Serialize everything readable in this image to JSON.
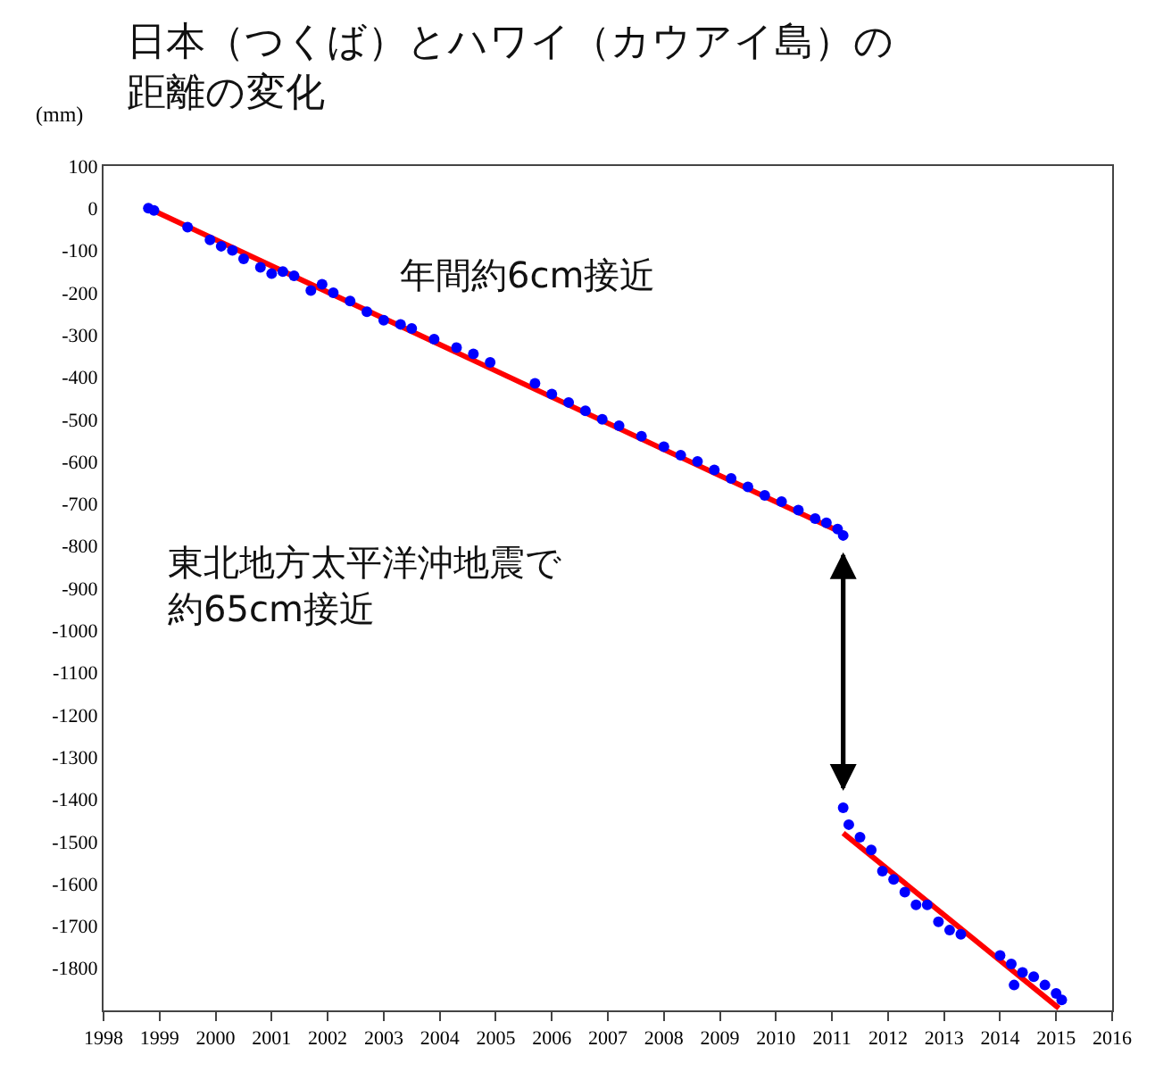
{
  "chart_data": {
    "type": "scatter",
    "title": "日本（つくば）とハワイ（カウアイ島）の距離の変化",
    "ylabel": "(mm)",
    "annotations": [
      "年間約6cm接近",
      "東北地方太平洋沖地震で約65cm接近"
    ],
    "xlim": [
      1998,
      2016
    ],
    "xticks": [
      1998,
      1999,
      2000,
      2001,
      2002,
      2003,
      2004,
      2005,
      2006,
      2007,
      2008,
      2009,
      2010,
      2011,
      2012,
      2013,
      2014,
      2015,
      2016
    ],
    "ylim": [
      -1900,
      100
    ],
    "yticks": [
      100,
      0,
      -100,
      -200,
      -300,
      -400,
      -500,
      -600,
      -700,
      -800,
      -900,
      -1000,
      -1100,
      -1200,
      -1300,
      -1400,
      -1500,
      -1600,
      -1700,
      -1800
    ],
    "series": [
      {
        "marker": "circle",
        "color": "#0000ff",
        "x": [
          1998.8,
          1998.9,
          1999.5,
          1999.9,
          2000.1,
          2000.3,
          2000.5,
          2000.8,
          2001.0,
          2001.2,
          2001.4,
          2001.7,
          2001.9,
          2002.1,
          2002.4,
          2002.7,
          2003.0,
          2003.3,
          2003.5,
          2003.9,
          2004.3,
          2004.6,
          2004.9,
          2005.7,
          2006.0,
          2006.3,
          2006.6,
          2006.9,
          2007.2,
          2007.6,
          2008.0,
          2008.3,
          2008.6,
          2008.9,
          2009.2,
          2009.5,
          2009.8,
          2010.1,
          2010.4,
          2010.7,
          2010.9,
          2011.1,
          2011.2
        ],
        "values": [
          0,
          -5,
          -45,
          -75,
          -90,
          -100,
          -120,
          -140,
          -155,
          -150,
          -160,
          -195,
          -180,
          -200,
          -220,
          -245,
          -265,
          -275,
          -285,
          -310,
          -330,
          -345,
          -365,
          -415,
          -440,
          -460,
          -480,
          -500,
          -515,
          -540,
          -565,
          -585,
          -600,
          -620,
          -640,
          -660,
          -680,
          -695,
          -715,
          -735,
          -745,
          -760,
          -775
        ]
      },
      {
        "marker": "circle",
        "color": "#0000ff",
        "x": [
          2011.2,
          2011.3,
          2011.5,
          2011.7,
          2011.9,
          2012.1,
          2012.3,
          2012.5,
          2012.7,
          2012.9,
          2013.1,
          2013.3,
          2014.0,
          2014.2,
          2014.25,
          2014.4,
          2014.6,
          2014.8,
          2015.0,
          2015.1
        ],
        "values": [
          -1420,
          -1460,
          -1490,
          -1520,
          -1570,
          -1590,
          -1620,
          -1650,
          -1650,
          -1690,
          -1710,
          -1720,
          -1770,
          -1790,
          -1840,
          -1810,
          -1820,
          -1840,
          -1860,
          -1875
        ]
      },
      {
        "type": "line",
        "color": "#ff0000",
        "x": [
          1998.8,
          2011.2
        ],
        "values": [
          0,
          -770
        ]
      },
      {
        "type": "line",
        "color": "#ff0000",
        "x": [
          2011.2,
          2015.05
        ],
        "values": [
          -1480,
          -1895
        ]
      }
    ]
  }
}
